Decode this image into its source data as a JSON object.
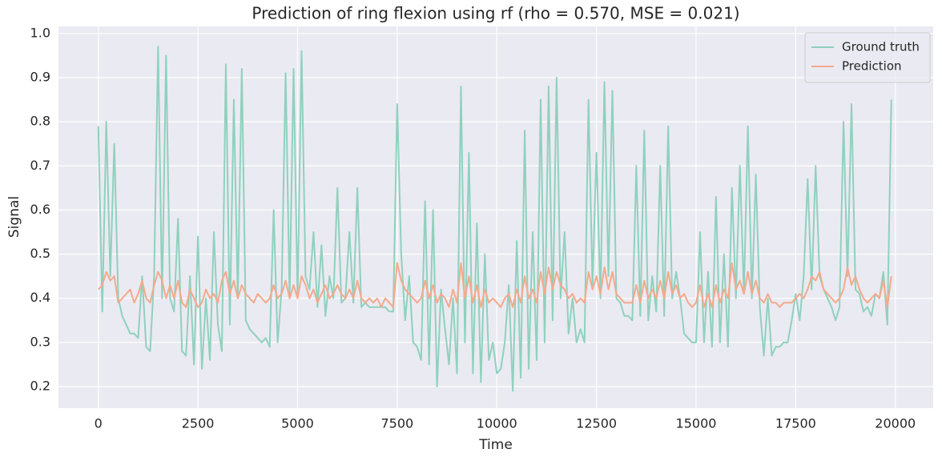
{
  "chart_data": {
    "type": "line",
    "title": "Prediction of ring flexion using rf (rho = 0.570, MSE = 0.021)",
    "x_label": "Time",
    "y_label": "Signal",
    "xlim": [
      -1000,
      20950
    ],
    "ylim": [
      0.151,
      1.016
    ],
    "xticks": [
      0,
      2500,
      5000,
      7500,
      10000,
      12500,
      15000,
      17500,
      20000
    ],
    "yticks": [
      0.2,
      0.3,
      0.4,
      0.5,
      0.6,
      0.7,
      0.8,
      0.9,
      {
        "value": 1,
        "label": "1.0"
      }
    ],
    "grid": true,
    "legend": "upper right",
    "x": [
      0,
      100,
      200,
      300,
      400,
      500,
      600,
      700,
      800,
      900,
      1000,
      1100,
      1200,
      1300,
      1400,
      1500,
      1600,
      1700,
      1800,
      1900,
      2000,
      2100,
      2200,
      2300,
      2400,
      2500,
      2600,
      2700,
      2800,
      2900,
      3000,
      3100,
      3200,
      3300,
      3400,
      3500,
      3600,
      3700,
      3800,
      3900,
      4000,
      4100,
      4200,
      4300,
      4400,
      4500,
      4600,
      4700,
      4800,
      4900,
      5000,
      5100,
      5200,
      5300,
      5400,
      5500,
      5600,
      5700,
      5800,
      5900,
      6000,
      6100,
      6200,
      6300,
      6400,
      6500,
      6600,
      6700,
      6800,
      6900,
      7000,
      7100,
      7200,
      7300,
      7400,
      7500,
      7600,
      7700,
      7800,
      7900,
      8000,
      8100,
      8200,
      8300,
      8400,
      8500,
      8600,
      8700,
      8800,
      8900,
      9000,
      9100,
      9200,
      9300,
      9400,
      9500,
      9600,
      9700,
      9800,
      9900,
      10000,
      10100,
      10200,
      10300,
      10400,
      10500,
      10600,
      10700,
      10800,
      10900,
      11000,
      11100,
      11200,
      11300,
      11400,
      11500,
      11600,
      11700,
      11800,
      11900,
      12000,
      12100,
      12200,
      12300,
      12400,
      12500,
      12600,
      12700,
      12800,
      12900,
      13000,
      13100,
      13200,
      13300,
      13400,
      13500,
      13600,
      13700,
      13800,
      13900,
      14000,
      14100,
      14200,
      14300,
      14400,
      14500,
      14600,
      14700,
      14800,
      14900,
      15000,
      15100,
      15200,
      15300,
      15400,
      15500,
      15600,
      15700,
      15800,
      15900,
      16000,
      16100,
      16200,
      16300,
      16400,
      16500,
      16600,
      16700,
      16800,
      16900,
      17000,
      17100,
      17200,
      17300,
      17400,
      17500,
      17600,
      17700,
      17800,
      17900,
      18000,
      18100,
      18200,
      18300,
      18400,
      18500,
      18600,
      18700,
      18800,
      18900,
      19000,
      19100,
      19200,
      19300,
      19400,
      19500,
      19600,
      19700,
      19800,
      19900
    ],
    "series": [
      {
        "name": "Ground truth",
        "color": "#8fd1bd",
        "values": [
          0.79,
          0.37,
          0.8,
          0.45,
          0.75,
          0.4,
          0.36,
          0.34,
          0.32,
          0.32,
          0.31,
          0.45,
          0.29,
          0.28,
          0.45,
          0.97,
          0.4,
          0.95,
          0.4,
          0.37,
          0.58,
          0.28,
          0.27,
          0.45,
          0.25,
          0.54,
          0.24,
          0.4,
          0.26,
          0.55,
          0.34,
          0.28,
          0.93,
          0.34,
          0.85,
          0.4,
          0.92,
          0.35,
          0.33,
          0.32,
          0.31,
          0.3,
          0.31,
          0.29,
          0.6,
          0.3,
          0.42,
          0.91,
          0.4,
          0.92,
          0.4,
          0.96,
          0.45,
          0.42,
          0.55,
          0.38,
          0.52,
          0.36,
          0.45,
          0.4,
          0.65,
          0.39,
          0.4,
          0.55,
          0.39,
          0.65,
          0.38,
          0.39,
          0.38,
          0.38,
          0.38,
          0.38,
          0.38,
          0.37,
          0.37,
          0.84,
          0.5,
          0.35,
          0.45,
          0.3,
          0.29,
          0.26,
          0.62,
          0.25,
          0.6,
          0.2,
          0.42,
          0.33,
          0.25,
          0.4,
          0.23,
          0.88,
          0.3,
          0.73,
          0.23,
          0.57,
          0.21,
          0.5,
          0.26,
          0.3,
          0.23,
          0.24,
          0.3,
          0.43,
          0.19,
          0.53,
          0.22,
          0.78,
          0.24,
          0.55,
          0.26,
          0.85,
          0.3,
          0.88,
          0.35,
          0.9,
          0.4,
          0.55,
          0.32,
          0.4,
          0.3,
          0.33,
          0.3,
          0.85,
          0.43,
          0.73,
          0.4,
          0.89,
          0.45,
          0.87,
          0.4,
          0.39,
          0.36,
          0.36,
          0.35,
          0.7,
          0.36,
          0.78,
          0.35,
          0.45,
          0.37,
          0.7,
          0.36,
          0.79,
          0.4,
          0.46,
          0.4,
          0.32,
          0.31,
          0.3,
          0.3,
          0.55,
          0.3,
          0.46,
          0.29,
          0.63,
          0.3,
          0.5,
          0.29,
          0.65,
          0.4,
          0.7,
          0.41,
          0.79,
          0.4,
          0.68,
          0.38,
          0.27,
          0.4,
          0.27,
          0.29,
          0.29,
          0.3,
          0.3,
          0.35,
          0.41,
          0.35,
          0.45,
          0.67,
          0.42,
          0.7,
          0.45,
          0.42,
          0.4,
          0.38,
          0.35,
          0.38,
          0.8,
          0.45,
          0.84,
          0.42,
          0.41,
          0.37,
          0.38,
          0.36,
          0.41,
          0.4,
          0.46,
          0.34,
          0.85
        ]
      },
      {
        "name": "Prediction",
        "color": "#f5a98b",
        "values": [
          0.42,
          0.43,
          0.46,
          0.44,
          0.45,
          0.39,
          0.4,
          0.41,
          0.42,
          0.39,
          0.41,
          0.44,
          0.4,
          0.39,
          0.43,
          0.46,
          0.44,
          0.4,
          0.43,
          0.4,
          0.44,
          0.39,
          0.38,
          0.42,
          0.4,
          0.38,
          0.39,
          0.42,
          0.4,
          0.41,
          0.39,
          0.44,
          0.46,
          0.41,
          0.44,
          0.4,
          0.43,
          0.41,
          0.4,
          0.39,
          0.41,
          0.4,
          0.39,
          0.4,
          0.43,
          0.4,
          0.41,
          0.44,
          0.4,
          0.43,
          0.4,
          0.45,
          0.43,
          0.4,
          0.42,
          0.39,
          0.41,
          0.43,
          0.4,
          0.41,
          0.43,
          0.41,
          0.4,
          0.42,
          0.4,
          0.44,
          0.4,
          0.39,
          0.4,
          0.39,
          0.4,
          0.38,
          0.4,
          0.39,
          0.38,
          0.48,
          0.44,
          0.42,
          0.41,
          0.4,
          0.39,
          0.4,
          0.44,
          0.4,
          0.43,
          0.39,
          0.41,
          0.4,
          0.38,
          0.42,
          0.39,
          0.48,
          0.4,
          0.45,
          0.39,
          0.43,
          0.38,
          0.42,
          0.39,
          0.4,
          0.39,
          0.38,
          0.4,
          0.41,
          0.38,
          0.42,
          0.39,
          0.45,
          0.4,
          0.42,
          0.39,
          0.46,
          0.41,
          0.47,
          0.42,
          0.46,
          0.43,
          0.42,
          0.4,
          0.41,
          0.39,
          0.4,
          0.39,
          0.46,
          0.42,
          0.45,
          0.41,
          0.47,
          0.42,
          0.46,
          0.41,
          0.4,
          0.39,
          0.39,
          0.39,
          0.43,
          0.39,
          0.44,
          0.4,
          0.42,
          0.4,
          0.44,
          0.4,
          0.46,
          0.41,
          0.43,
          0.4,
          0.41,
          0.39,
          0.38,
          0.39,
          0.43,
          0.38,
          0.41,
          0.38,
          0.43,
          0.39,
          0.42,
          0.4,
          0.48,
          0.42,
          0.44,
          0.41,
          0.46,
          0.41,
          0.44,
          0.4,
          0.39,
          0.41,
          0.39,
          0.39,
          0.38,
          0.39,
          0.39,
          0.39,
          0.4,
          0.41,
          0.4,
          0.42,
          0.45,
          0.44,
          0.46,
          0.42,
          0.41,
          0.4,
          0.39,
          0.4,
          0.42,
          0.47,
          0.43,
          0.45,
          0.42,
          0.4,
          0.39,
          0.4,
          0.41,
          0.4,
          0.44,
          0.38,
          0.45
        ]
      }
    ]
  }
}
